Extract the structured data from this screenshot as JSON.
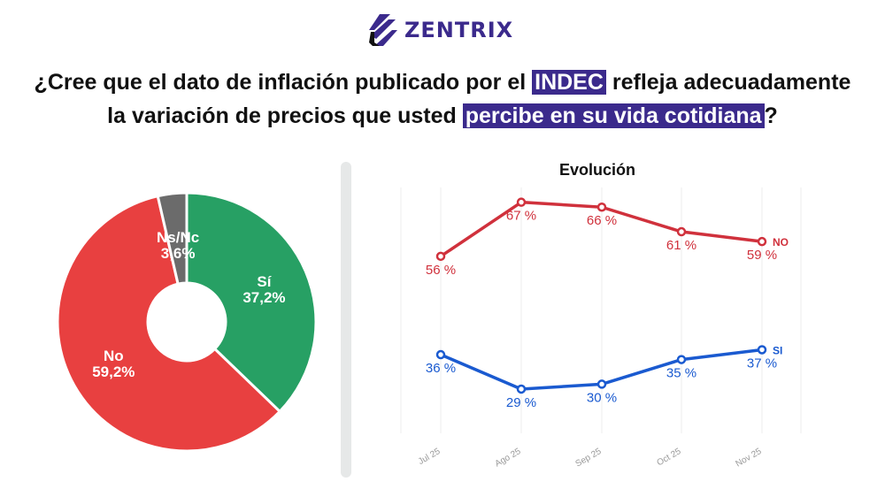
{
  "brand": {
    "name": "ZENTRIX",
    "color": "#3b2a8c"
  },
  "title": {
    "part1": "¿Cree que el dato de inflación publicado por el ",
    "highlight1": "INDEC",
    "part2": " refleja adecuadamente",
    "part3": "la variación de precios que usted ",
    "highlight2": "percibe en su vida cotidiana",
    "part4": "?"
  },
  "chart_data": [
    {
      "type": "pie",
      "donut": true,
      "slices": [
        {
          "label": "Sí",
          "value": 37.2,
          "display": "37,2%",
          "color": "#27a064"
        },
        {
          "label": "No",
          "value": 59.2,
          "display": "59,2%",
          "color": "#e84040"
        },
        {
          "label": "Ns/Nc",
          "value": 3.6,
          "display": "3,6%",
          "color": "#6b6b6b"
        }
      ]
    },
    {
      "type": "line",
      "title": "Evolución",
      "categories": [
        "Jul 25",
        "Ago 25",
        "Sep 25",
        "Oct 25",
        "Nov 25"
      ],
      "ylim": [
        20,
        70
      ],
      "grid": "vertical",
      "series": [
        {
          "name": "NO",
          "values": [
            56,
            67,
            66,
            61,
            59
          ],
          "labels": [
            "56 %",
            "67 %",
            "66 %",
            "61 %",
            "59 %"
          ],
          "color": "#d0313c"
        },
        {
          "name": "SI",
          "values": [
            36,
            29,
            30,
            35,
            37
          ],
          "labels": [
            "36 %",
            "29 %",
            "30 %",
            "35 %",
            "37 %"
          ],
          "color": "#1a5ad0"
        }
      ]
    }
  ]
}
